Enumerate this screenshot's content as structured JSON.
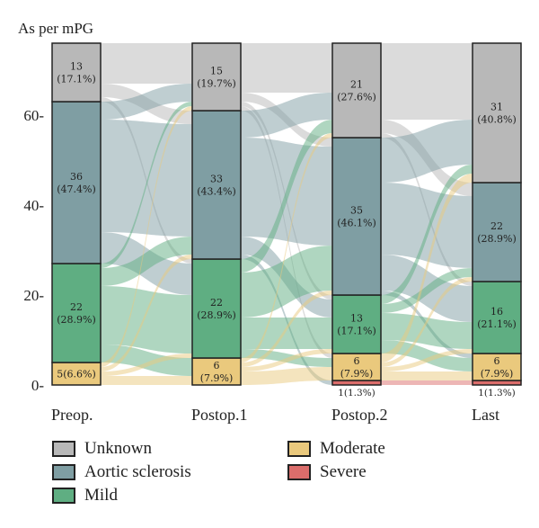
{
  "chart_data": {
    "type": "sankey",
    "ylabel": "As per mPG",
    "y_ticks": [
      "0-",
      "20-",
      "40-",
      "60-"
    ],
    "y_tick_values": [
      0,
      20,
      40,
      60
    ],
    "ylim": [
      0,
      76
    ],
    "stages": [
      "Preop.",
      "Postop.1",
      "Postop.2",
      "Last"
    ],
    "categories": [
      "Severe",
      "Moderate",
      "Mild",
      "Aortic sclerosis",
      "Unknown"
    ],
    "category_colors": {
      "Unknown": "#b8b8b8",
      "Aortic sclerosis": "#7f9ea3",
      "Mild": "#5fae82",
      "Moderate": "#eac97d",
      "Severe": "#db6d6b"
    },
    "columns": [
      {
        "stage": "Preop.",
        "nodes": [
          {
            "category": "Moderate",
            "count": 5,
            "label": "5(6.6%)"
          },
          {
            "category": "Mild",
            "count": 22,
            "label": "22\n(28.9%)"
          },
          {
            "category": "Aortic sclerosis",
            "count": 36,
            "label": "36\n(47.4%)"
          },
          {
            "category": "Unknown",
            "count": 13,
            "label": "13\n(17.1%)"
          }
        ]
      },
      {
        "stage": "Postop.1",
        "nodes": [
          {
            "category": "Moderate",
            "count": 6,
            "label": "6\n(7.9%)"
          },
          {
            "category": "Mild",
            "count": 22,
            "label": "22\n(28.9%)"
          },
          {
            "category": "Aortic sclerosis",
            "count": 33,
            "label": "33\n(43.4%)"
          },
          {
            "category": "Unknown",
            "count": 15,
            "label": "15\n(19.7%)"
          }
        ]
      },
      {
        "stage": "Postop.2",
        "nodes": [
          {
            "category": "Severe",
            "count": 1,
            "label": "1(1.3%)"
          },
          {
            "category": "Moderate",
            "count": 6,
            "label": "6\n(7.9%)"
          },
          {
            "category": "Mild",
            "count": 13,
            "label": "13\n(17.1%)"
          },
          {
            "category": "Aortic sclerosis",
            "count": 35,
            "label": "35\n(46.1%)"
          },
          {
            "category": "Unknown",
            "count": 21,
            "label": "21\n(27.6%)"
          }
        ]
      },
      {
        "stage": "Last",
        "nodes": [
          {
            "category": "Severe",
            "count": 1,
            "label": "1(1.3%)"
          },
          {
            "category": "Moderate",
            "count": 6,
            "label": "6\n(7.9%)"
          },
          {
            "category": "Mild",
            "count": 16,
            "label": "16\n(21.1%)"
          },
          {
            "category": "Aortic sclerosis",
            "count": 22,
            "label": "22\n(28.9%)"
          },
          {
            "category": "Unknown",
            "count": 31,
            "label": "31\n(40.8%)"
          }
        ]
      }
    ],
    "flows": [
      [
        {
          "from": "Unknown",
          "to": "Unknown",
          "value": 9
        },
        {
          "from": "Unknown",
          "to": "Aortic sclerosis",
          "value": 3
        },
        {
          "from": "Unknown",
          "to": "Mild",
          "value": 1
        },
        {
          "from": "Aortic sclerosis",
          "to": "Unknown",
          "value": 4
        },
        {
          "from": "Aortic sclerosis",
          "to": "Aortic sclerosis",
          "value": 25
        },
        {
          "from": "Aortic sclerosis",
          "to": "Mild",
          "value": 7
        },
        {
          "from": "Mild",
          "to": "Unknown",
          "value": 1
        },
        {
          "from": "Mild",
          "to": "Aortic sclerosis",
          "value": 4
        },
        {
          "from": "Mild",
          "to": "Mild",
          "value": 13
        },
        {
          "from": "Mild",
          "to": "Moderate",
          "value": 4
        },
        {
          "from": "Moderate",
          "to": "Unknown",
          "value": 1
        },
        {
          "from": "Moderate",
          "to": "Aortic sclerosis",
          "value": 1
        },
        {
          "from": "Moderate",
          "to": "Mild",
          "value": 1
        },
        {
          "from": "Moderate",
          "to": "Moderate",
          "value": 2
        }
      ],
      [
        {
          "from": "Unknown",
          "to": "Unknown",
          "value": 11
        },
        {
          "from": "Unknown",
          "to": "Aortic sclerosis",
          "value": 2
        },
        {
          "from": "Unknown",
          "to": "Mild",
          "value": 1
        },
        {
          "from": "Unknown",
          "to": "Moderate",
          "value": 1
        },
        {
          "from": "Aortic sclerosis",
          "to": "Unknown",
          "value": 6
        },
        {
          "from": "Aortic sclerosis",
          "to": "Aortic sclerosis",
          "value": 22
        },
        {
          "from": "Aortic sclerosis",
          "to": "Mild",
          "value": 4
        },
        {
          "from": "Aortic sclerosis",
          "to": "Severe",
          "value": 1
        },
        {
          "from": "Mild",
          "to": "Unknown",
          "value": 3
        },
        {
          "from": "Mild",
          "to": "Aortic sclerosis",
          "value": 10
        },
        {
          "from": "Mild",
          "to": "Mild",
          "value": 7
        },
        {
          "from": "Mild",
          "to": "Moderate",
          "value": 2
        },
        {
          "from": "Moderate",
          "to": "Unknown",
          "value": 1
        },
        {
          "from": "Moderate",
          "to": "Aortic sclerosis",
          "value": 1
        },
        {
          "from": "Moderate",
          "to": "Mild",
          "value": 1
        },
        {
          "from": "Moderate",
          "to": "Moderate",
          "value": 3
        }
      ],
      [
        {
          "from": "Unknown",
          "to": "Unknown",
          "value": 17
        },
        {
          "from": "Unknown",
          "to": "Aortic sclerosis",
          "value": 3
        },
        {
          "from": "Unknown",
          "to": "Mild",
          "value": 1
        },
        {
          "from": "Aortic sclerosis",
          "to": "Unknown",
          "value": 10
        },
        {
          "from": "Aortic sclerosis",
          "to": "Aortic sclerosis",
          "value": 16
        },
        {
          "from": "Aortic sclerosis",
          "to": "Mild",
          "value": 8
        },
        {
          "from": "Aortic sclerosis",
          "to": "Moderate",
          "value": 1
        },
        {
          "from": "Mild",
          "to": "Unknown",
          "value": 2
        },
        {
          "from": "Mild",
          "to": "Aortic sclerosis",
          "value": 2
        },
        {
          "from": "Mild",
          "to": "Mild",
          "value": 6
        },
        {
          "from": "Mild",
          "to": "Moderate",
          "value": 3
        },
        {
          "from": "Moderate",
          "to": "Unknown",
          "value": 2
        },
        {
          "from": "Moderate",
          "to": "Aortic sclerosis",
          "value": 1
        },
        {
          "from": "Moderate",
          "to": "Mild",
          "value": 1
        },
        {
          "from": "Moderate",
          "to": "Moderate",
          "value": 2
        },
        {
          "from": "Severe",
          "to": "Severe",
          "value": 1
        }
      ]
    ],
    "legend": [
      "Unknown",
      "Aortic sclerosis",
      "Mild",
      "Moderate",
      "Severe"
    ],
    "grid": false
  }
}
